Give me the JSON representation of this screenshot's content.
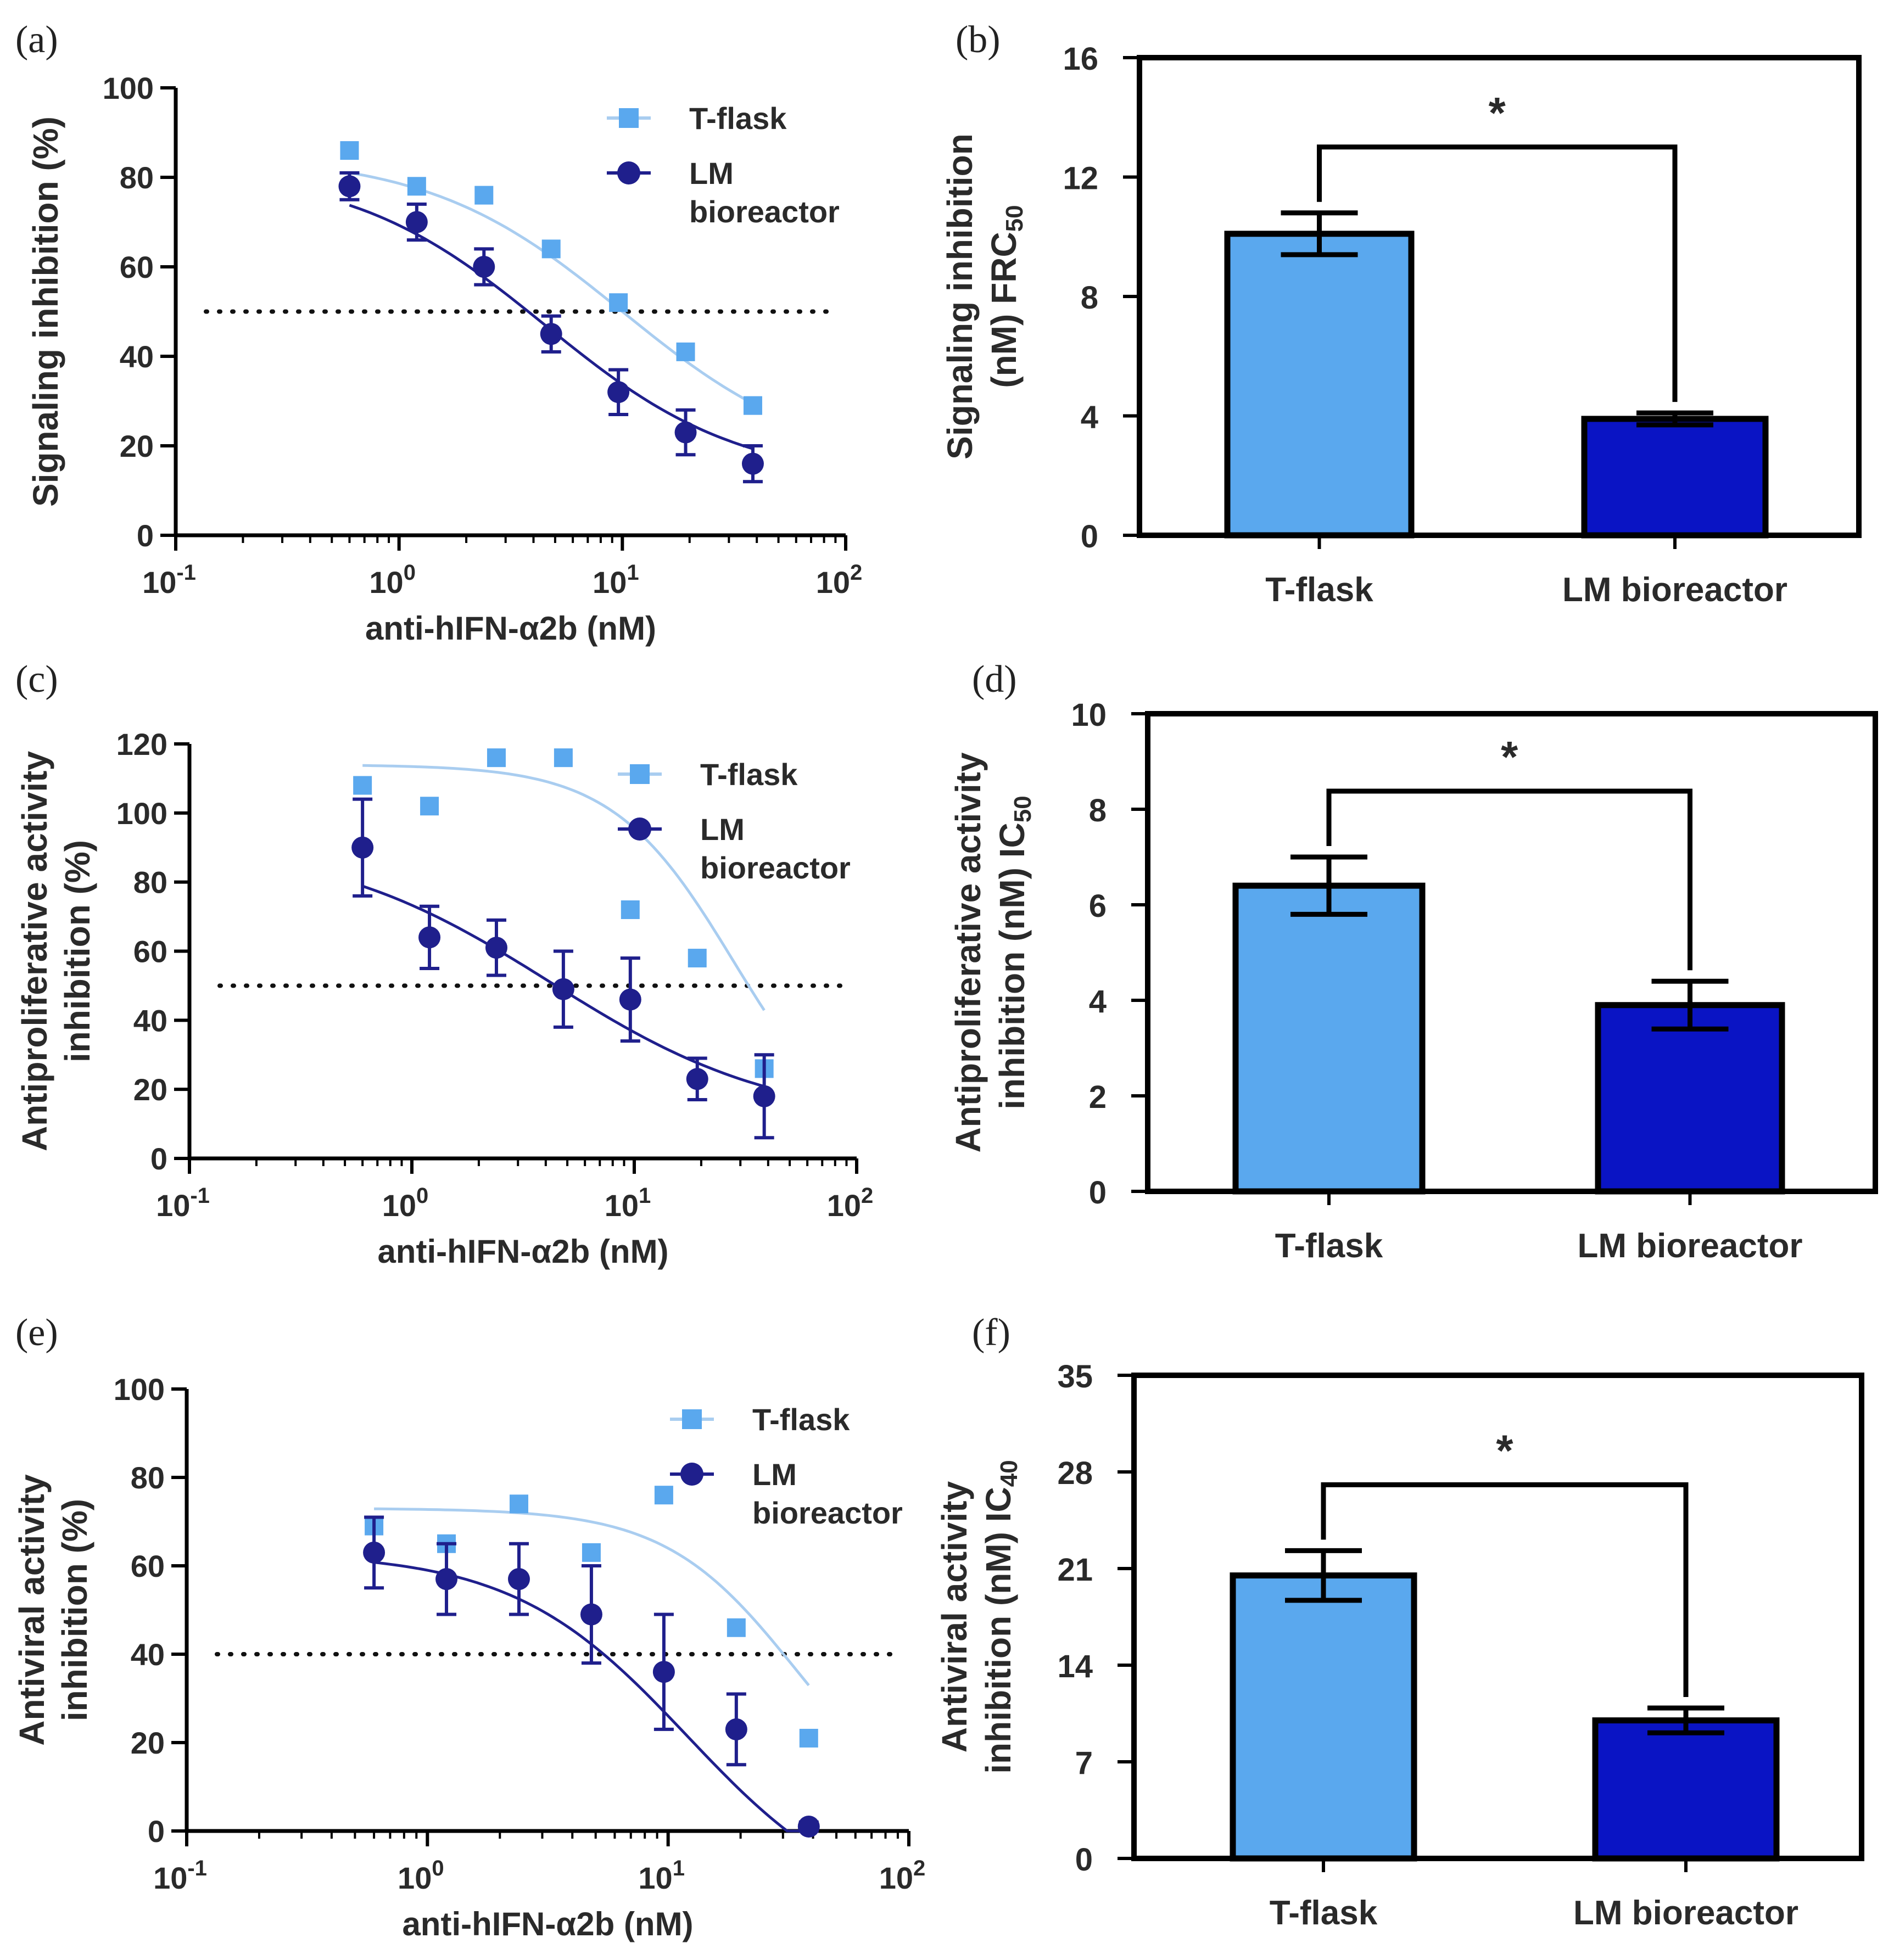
{
  "colors": {
    "tflask": "#5aa8ee",
    "tflask_curve": "#a9cdf0",
    "lm": "#1f1f8c",
    "lm_bar": "#0a14c4",
    "axis": "#000000"
  },
  "chart_data": [
    {
      "panel": "(a)",
      "type": "line",
      "xscale": "log",
      "xlabel": "anti-hIFN-α2b (nM)",
      "ylabel": "Signaling inhibition (%)",
      "xlim": [
        0.1,
        100
      ],
      "ylim": [
        0,
        100
      ],
      "yticks": [
        "0",
        "20",
        "40",
        "60",
        "80",
        "100"
      ],
      "xtick_base": "10",
      "xtick_exps": [
        "-1",
        "0",
        "1",
        "2"
      ],
      "threshold": 50,
      "legend": "top-right",
      "series": [
        {
          "name": "T-flask",
          "marker": "square",
          "x": [
            0.6,
            1.2,
            2.4,
            4.8,
            9.6,
            19.2,
            38.4
          ],
          "y": [
            86,
            78,
            76,
            64,
            52,
            41,
            29
          ],
          "fit": {
            "top": 85,
            "bottom": 15,
            "ec50": 10,
            "hill": 1
          }
        },
        {
          "name": "LM\nbioreactor",
          "marker": "circle",
          "x": [
            0.6,
            1.2,
            2.4,
            4.8,
            9.6,
            19.2,
            38.4
          ],
          "y": [
            78,
            70,
            60,
            45,
            32,
            23,
            16
          ],
          "err": [
            3,
            4,
            4,
            4,
            5,
            5,
            4
          ],
          "fit": {
            "top": 82,
            "bottom": 12,
            "ec50": 4.5,
            "hill": 1
          }
        }
      ]
    },
    {
      "panel": "(b)",
      "type": "bar",
      "categories": [
        "T-flask",
        "LM bioreactor"
      ],
      "values": [
        10.1,
        3.9
      ],
      "errors": [
        0.7,
        0.2
      ],
      "ylabel_lines": [
        "Signaling inhibition",
        "(nM) FRC"
      ],
      "ylabel_sub": "50",
      "ylim": [
        0,
        16
      ],
      "yticks": [
        "0",
        "4",
        "8",
        "12",
        "16"
      ],
      "significance": "*"
    },
    {
      "panel": "(c)",
      "type": "line",
      "xscale": "log",
      "xlabel": "anti-hIFN-α2b (nM)",
      "ylabel_lines": [
        "Antiproliferative activity",
        "inhibition (%)"
      ],
      "xlim": [
        0.1,
        100
      ],
      "ylim": [
        0,
        120
      ],
      "yticks": [
        "0",
        "20",
        "40",
        "60",
        "80",
        "100",
        "120"
      ],
      "xtick_base": "10",
      "xtick_exps": [
        "-1",
        "0",
        "1",
        "2"
      ],
      "threshold": 50,
      "legend": "top-right",
      "series": [
        {
          "name": "T-flask",
          "marker": "square",
          "x": [
            0.6,
            1.2,
            2.4,
            4.8,
            9.6,
            19.2,
            38.4
          ],
          "y": [
            108,
            102,
            116,
            116,
            72,
            58,
            26
          ],
          "fit": {
            "top": 114,
            "bottom": 0,
            "ec50": 28,
            "hill": 1.6
          }
        },
        {
          "name": "LM\nbioreactor",
          "marker": "circle",
          "x": [
            0.6,
            1.2,
            2.4,
            4.8,
            9.6,
            19.2,
            38.4
          ],
          "y": [
            90,
            64,
            61,
            49,
            46,
            23,
            18
          ],
          "err": [
            14,
            9,
            8,
            11,
            12,
            6,
            12
          ],
          "fit": {
            "top": 92,
            "bottom": 10,
            "ec50": 4.2,
            "hill": 0.85
          }
        }
      ]
    },
    {
      "panel": "(d)",
      "type": "bar",
      "categories": [
        "T-flask",
        "LM bioreactor"
      ],
      "values": [
        6.4,
        3.9
      ],
      "errors": [
        0.6,
        0.5
      ],
      "ylabel_lines": [
        "Antiproliferative activity",
        "inhibition (nM) IC"
      ],
      "ylabel_sub": "50",
      "ylim": [
        0,
        10
      ],
      "yticks": [
        "0",
        "2",
        "4",
        "6",
        "8",
        "10"
      ],
      "significance": "*"
    },
    {
      "panel": "(e)",
      "type": "line",
      "xscale": "log",
      "xlabel": "anti-hIFN-α2b (nM)",
      "ylabel_lines": [
        "Antiviral activity",
        "inhibition (%)"
      ],
      "xlim": [
        0.1,
        100
      ],
      "ylim": [
        0,
        100
      ],
      "yticks": [
        "0",
        "20",
        "40",
        "60",
        "80",
        "100"
      ],
      "xtick_base": "10",
      "xtick_exps": [
        "-1",
        "0",
        "1",
        "2"
      ],
      "threshold": 40,
      "legend": "top-right",
      "series": [
        {
          "name": "T-flask",
          "marker": "square",
          "x": [
            0.6,
            1.2,
            2.4,
            4.8,
            9.6,
            19.2,
            38.4
          ],
          "y": [
            69,
            65,
            74,
            63,
            76,
            46,
            21
          ],
          "fit": {
            "top": 73,
            "bottom": 0,
            "ec50": 34,
            "hill": 1.6
          }
        },
        {
          "name": "LM\nbioreactor",
          "marker": "circle",
          "x": [
            0.6,
            1.2,
            2.4,
            4.8,
            9.6,
            19.2,
            38.4
          ],
          "y": [
            63,
            57,
            57,
            49,
            36,
            23,
            1
          ],
          "err": [
            8,
            8,
            8,
            11,
            13,
            8,
            1
          ],
          "fit": {
            "top": 63,
            "bottom": -20,
            "ec50": 12,
            "hill": 1.2
          }
        }
      ]
    },
    {
      "panel": "(f)",
      "type": "bar",
      "categories": [
        "T-flask",
        "LM bioreactor"
      ],
      "values": [
        20.5,
        10.0
      ],
      "errors": [
        1.8,
        0.9
      ],
      "ylabel_lines": [
        "Antiviral activity",
        "inhibition (nM) IC"
      ],
      "ylabel_sub": "40",
      "ylim": [
        0,
        35
      ],
      "yticks": [
        "0",
        "7",
        "14",
        "21",
        "28",
        "35"
      ],
      "significance": "*"
    }
  ]
}
